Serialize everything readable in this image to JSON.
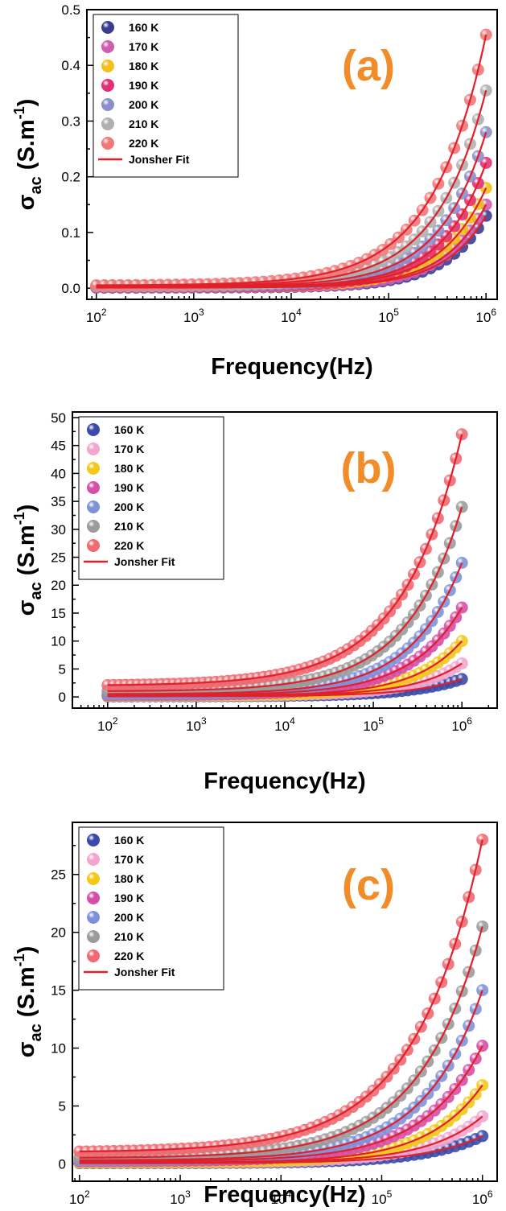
{
  "chart_data": [
    {
      "type": "scatter",
      "panel_label": "(a)",
      "xlabel": "Frequency(Hz)",
      "ylabel": "σac (S.m-1)",
      "ylabel_parts": {
        "symbol": "σ",
        "sub": "ac",
        "unit": " (S.m",
        "sup": "-1",
        "close": ")"
      },
      "x_scale": "log",
      "xlim": [
        80,
        1300000
      ],
      "ylim": [
        -0.02,
        0.5
      ],
      "xticks": [
        100,
        1000,
        10000,
        100000,
        1000000
      ],
      "xtick_labels": [
        {
          "base": "10",
          "exp": "2"
        },
        {
          "base": "10",
          "exp": "3"
        },
        {
          "base": "10",
          "exp": "4"
        },
        {
          "base": "10",
          "exp": "5"
        },
        {
          "base": "10",
          "exp": "6"
        }
      ],
      "yticks": [
        0.0,
        0.1,
        0.2,
        0.3,
        0.4,
        0.5
      ],
      "ytick_labels": [
        "0.0",
        "0.1",
        "0.2",
        "0.3",
        "0.4",
        "0.5"
      ],
      "legend": "top-left",
      "fit_label": "Jonsher Fit",
      "fit_color": "#e0202a",
      "x_start": 100,
      "x_end": 1000000,
      "points_per_series": 50,
      "series": [
        {
          "name": "160 K",
          "color": "#3a3d8f",
          "dc": 0.001,
          "value_at_1MHz": 0.13,
          "n": 1.0
        },
        {
          "name": "170 K",
          "color": "#d15cb0",
          "dc": 0.0015,
          "value_at_1MHz": 0.15,
          "n": 1.0
        },
        {
          "name": "180 K",
          "color": "#f2c01a",
          "dc": 0.002,
          "value_at_1MHz": 0.18,
          "n": 0.95
        },
        {
          "name": "190 K",
          "color": "#e32f74",
          "dc": 0.002,
          "value_at_1MHz": 0.225,
          "n": 0.95
        },
        {
          "name": "200 K",
          "color": "#8a8fc8",
          "dc": 0.003,
          "value_at_1MHz": 0.28,
          "n": 0.9
        },
        {
          "name": "210 K",
          "color": "#b0b0b0",
          "dc": 0.004,
          "value_at_1MHz": 0.355,
          "n": 0.85
        },
        {
          "name": "220 K",
          "color": "#f07878",
          "dc": 0.005,
          "value_at_1MHz": 0.455,
          "n": 0.8
        }
      ]
    },
    {
      "type": "scatter",
      "panel_label": "(b)",
      "xlabel": "Frequency(Hz)",
      "ylabel": "σac (S.m-1)",
      "ylabel_parts": {
        "symbol": "σ",
        "sub": "ac",
        "unit": " (S.m",
        "sup": "-1",
        "close": ")"
      },
      "x_scale": "log",
      "xlim": [
        40,
        2500000
      ],
      "ylim": [
        -2,
        51
      ],
      "xticks": [
        100,
        1000,
        10000,
        100000,
        1000000
      ],
      "xtick_labels": [
        {
          "base": "10",
          "exp": "2"
        },
        {
          "base": "10",
          "exp": "3"
        },
        {
          "base": "10",
          "exp": "4"
        },
        {
          "base": "10",
          "exp": "5"
        },
        {
          "base": "10",
          "exp": "6"
        }
      ],
      "yticks": [
        0,
        5,
        10,
        15,
        20,
        25,
        30,
        35,
        40,
        45,
        50
      ],
      "ytick_labels": [
        "0",
        "5",
        "10",
        "15",
        "20",
        "25",
        "30",
        "35",
        "40",
        "45",
        "50"
      ],
      "legend": "top-left",
      "fit_label": "Jonsher Fit",
      "fit_color": "#e0202a",
      "x_start": 100,
      "x_end": 1000000,
      "points_per_series": 60,
      "series": [
        {
          "name": "160 K",
          "color": "#3a4aa8",
          "dc": 0.1,
          "value_at_1MHz": 3.2,
          "n": 0.75
        },
        {
          "name": "170 K",
          "color": "#f2a6cf",
          "dc": 0.2,
          "value_at_1MHz": 6.0,
          "n": 0.8
        },
        {
          "name": "180 K",
          "color": "#f2c81a",
          "dc": 0.2,
          "value_at_1MHz": 10.0,
          "n": 0.8
        },
        {
          "name": "190 K",
          "color": "#d64fa6",
          "dc": 0.3,
          "value_at_1MHz": 16.0,
          "n": 0.75
        },
        {
          "name": "200 K",
          "color": "#7f92d8",
          "dc": 0.5,
          "value_at_1MHz": 24.0,
          "n": 0.75
        },
        {
          "name": "210 K",
          "color": "#9b9b9b",
          "dc": 1.0,
          "value_at_1MHz": 34.0,
          "n": 0.7
        },
        {
          "name": "220 K",
          "color": "#ef6a72",
          "dc": 2.0,
          "value_at_1MHz": 47.0,
          "n": 0.65
        }
      ]
    },
    {
      "type": "scatter",
      "panel_label": "(c)",
      "xlabel": "Frequency(Hz)",
      "ylabel": "σac (S.m-1)",
      "ylabel_parts": {
        "symbol": "σ",
        "sub": "ac",
        "unit": " (S.m",
        "sup": "-1",
        "close": ")"
      },
      "x_scale": "log",
      "xlim": [
        85,
        1400000
      ],
      "ylim": [
        -1.5,
        29.5
      ],
      "xticks": [
        100,
        1000,
        10000,
        100000,
        1000000
      ],
      "xtick_labels": [
        {
          "base": "10",
          "exp": "2"
        },
        {
          "base": "10",
          "exp": "3"
        },
        {
          "base": "10",
          "exp": "4"
        },
        {
          "base": "10",
          "exp": "5"
        },
        {
          "base": "10",
          "exp": "6"
        }
      ],
      "yticks": [
        0,
        5,
        10,
        15,
        20,
        25
      ],
      "ytick_labels": [
        "0",
        "5",
        "10",
        "15",
        "20",
        "25"
      ],
      "legend": "top-left",
      "fit_label": "Jonsher Fit",
      "fit_color": "#e0202a",
      "x_start": 100,
      "x_end": 1000000,
      "points_per_series": 60,
      "series": [
        {
          "name": "160 K",
          "color": "#3a4aa8",
          "dc": 0.05,
          "value_at_1MHz": 2.4,
          "n": 0.75
        },
        {
          "name": "170 K",
          "color": "#f2a6cf",
          "dc": 0.1,
          "value_at_1MHz": 4.1,
          "n": 0.8
        },
        {
          "name": "180 K",
          "color": "#f2c81a",
          "dc": 0.1,
          "value_at_1MHz": 6.8,
          "n": 0.8
        },
        {
          "name": "190 K",
          "color": "#d64fa6",
          "dc": 0.2,
          "value_at_1MHz": 10.2,
          "n": 0.75
        },
        {
          "name": "200 K",
          "color": "#7f92d8",
          "dc": 0.3,
          "value_at_1MHz": 15.0,
          "n": 0.75
        },
        {
          "name": "210 K",
          "color": "#9b9b9b",
          "dc": 0.5,
          "value_at_1MHz": 20.5,
          "n": 0.7
        },
        {
          "name": "220 K",
          "color": "#ef6a72",
          "dc": 1.0,
          "value_at_1MHz": 28.0,
          "n": 0.65
        }
      ]
    }
  ]
}
